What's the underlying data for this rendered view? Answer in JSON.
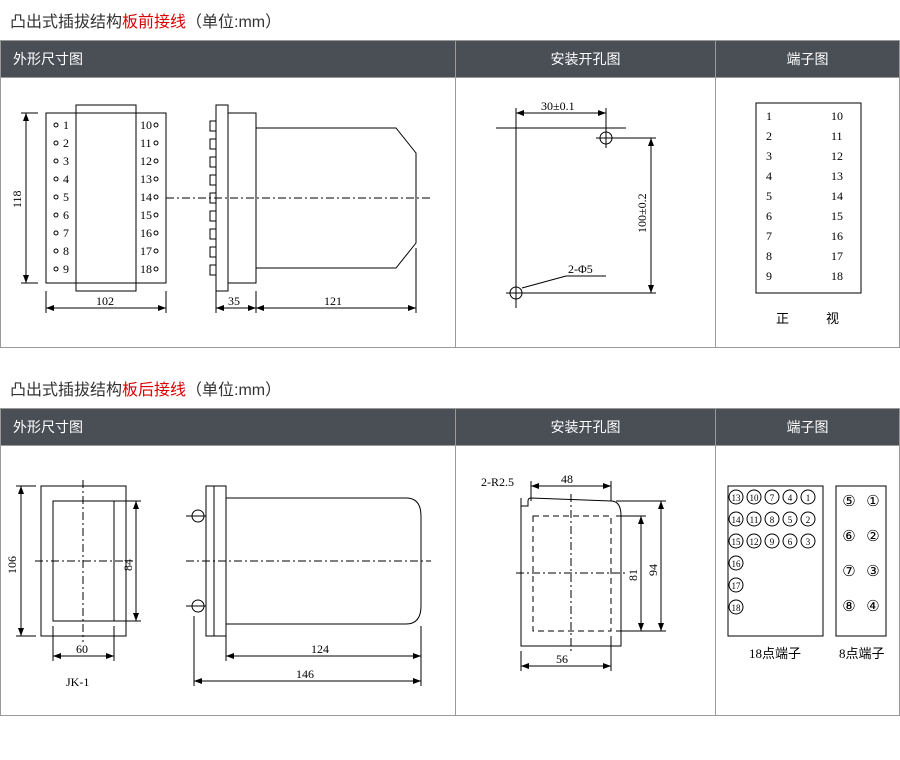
{
  "section1": {
    "title_prefix": "凸出式插拔结构",
    "title_red": "板前接线",
    "title_suffix": "（单位:mm）",
    "headers": {
      "col1": "外形尺寸图",
      "col2": "安装开孔图",
      "col3": "端子图"
    },
    "dims": {
      "h118": "118",
      "w102": "102",
      "w35": "35",
      "w121": "121",
      "hole_w": "30±0.1",
      "hole_h": "100±0.2",
      "hole_d": "2-Φ5"
    },
    "term_left": [
      "1",
      "2",
      "3",
      "4",
      "5",
      "6",
      "7",
      "8",
      "9"
    ],
    "term_right": [
      "10",
      "11",
      "12",
      "13",
      "14",
      "15",
      "16",
      "17",
      "18"
    ],
    "term_label_l": "正",
    "term_label_r": "视"
  },
  "section2": {
    "title_prefix": "凸出式插拔结构",
    "title_red": "板后接线",
    "title_suffix": "（单位:mm）",
    "headers": {
      "col1": "外形尺寸图",
      "col2": "安装开孔图",
      "col3": "端子图"
    },
    "dims": {
      "h106": "106",
      "h84": "84",
      "w60": "60",
      "w124": "124",
      "w146": "146",
      "name": "JK-1",
      "hole_r": "2-R2.5",
      "hole_w": "48",
      "hole_h1": "81",
      "hole_h2": "94",
      "hole_b": "56"
    },
    "term18_rows": [
      [
        "⑬",
        "⑩",
        "⑦",
        "④",
        "①"
      ],
      [
        "⑭",
        "⑪",
        "⑧",
        "⑤",
        "②"
      ],
      [
        "⑮",
        "⑫",
        "⑨",
        "⑥",
        "③"
      ],
      [
        "⑯",
        "",
        "",
        "",
        ""
      ],
      [
        "⑰",
        "",
        "",
        "",
        ""
      ],
      [
        "⑱",
        "",
        "",
        "",
        ""
      ]
    ],
    "term8": [
      "⑤",
      "①",
      "⑥",
      "②",
      "⑦",
      "③",
      "⑧",
      "④"
    ],
    "term18_label": "18点端子",
    "term8_label": "8点端子"
  },
  "layout": {
    "col1_w": 455,
    "col2_w": 260,
    "col3_w": 183
  }
}
